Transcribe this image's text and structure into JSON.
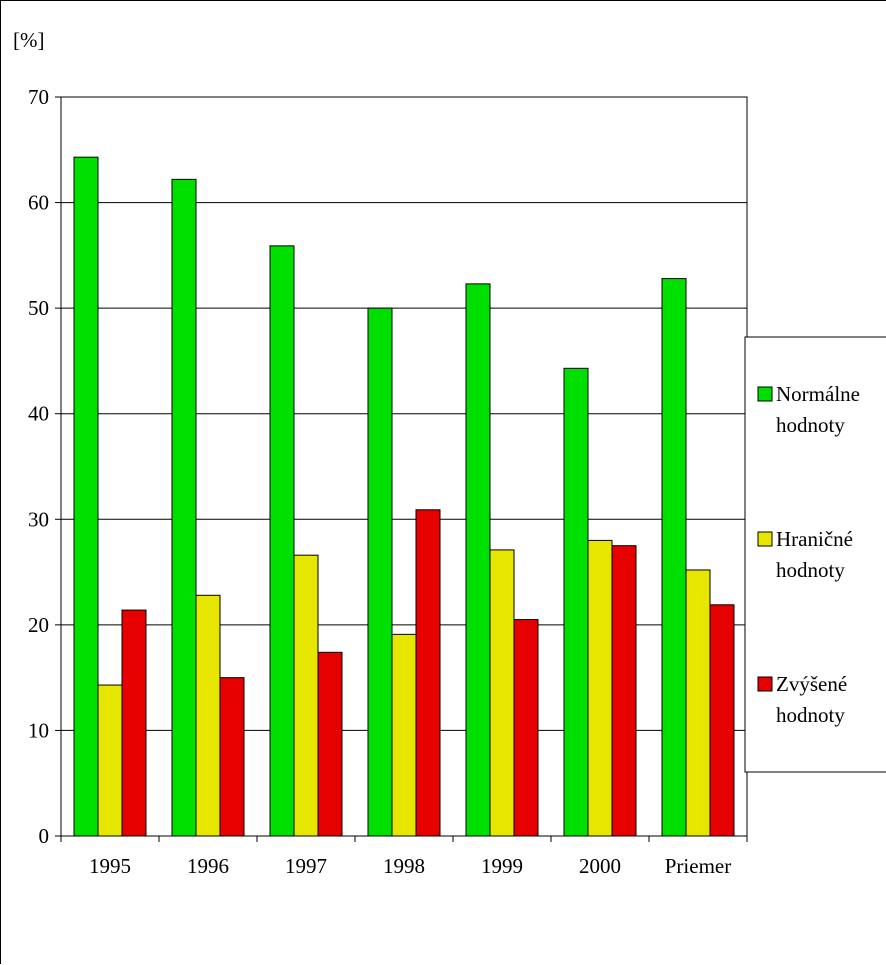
{
  "chart_data": {
    "type": "bar",
    "y_unit_label": "[%]",
    "ylim": [
      0,
      70
    ],
    "ytick_step": 10,
    "grid": true,
    "legend_position": "right",
    "categories": [
      "1995",
      "1996",
      "1997",
      "1998",
      "1999",
      "2000",
      "Priemer"
    ],
    "series": [
      {
        "name": "Normálne hodnoty",
        "legend_lines": [
          "Normálne",
          "hodnoty"
        ],
        "color": "#00e000",
        "values": [
          64.3,
          62.2,
          55.9,
          50.0,
          52.3,
          44.3,
          52.8
        ]
      },
      {
        "name": "Hraničné hodnoty",
        "legend_lines": [
          "Hraničné",
          "hodnoty"
        ],
        "color": "#e6e600",
        "values": [
          14.3,
          22.8,
          26.6,
          19.1,
          27.1,
          28.0,
          25.2
        ]
      },
      {
        "name": "Zvýšené hodnoty",
        "legend_lines": [
          "Zvýšené",
          "hodnoty"
        ],
        "color": "#e60000",
        "values": [
          21.4,
          15.0,
          17.4,
          30.9,
          20.5,
          27.5,
          21.9
        ]
      }
    ]
  }
}
